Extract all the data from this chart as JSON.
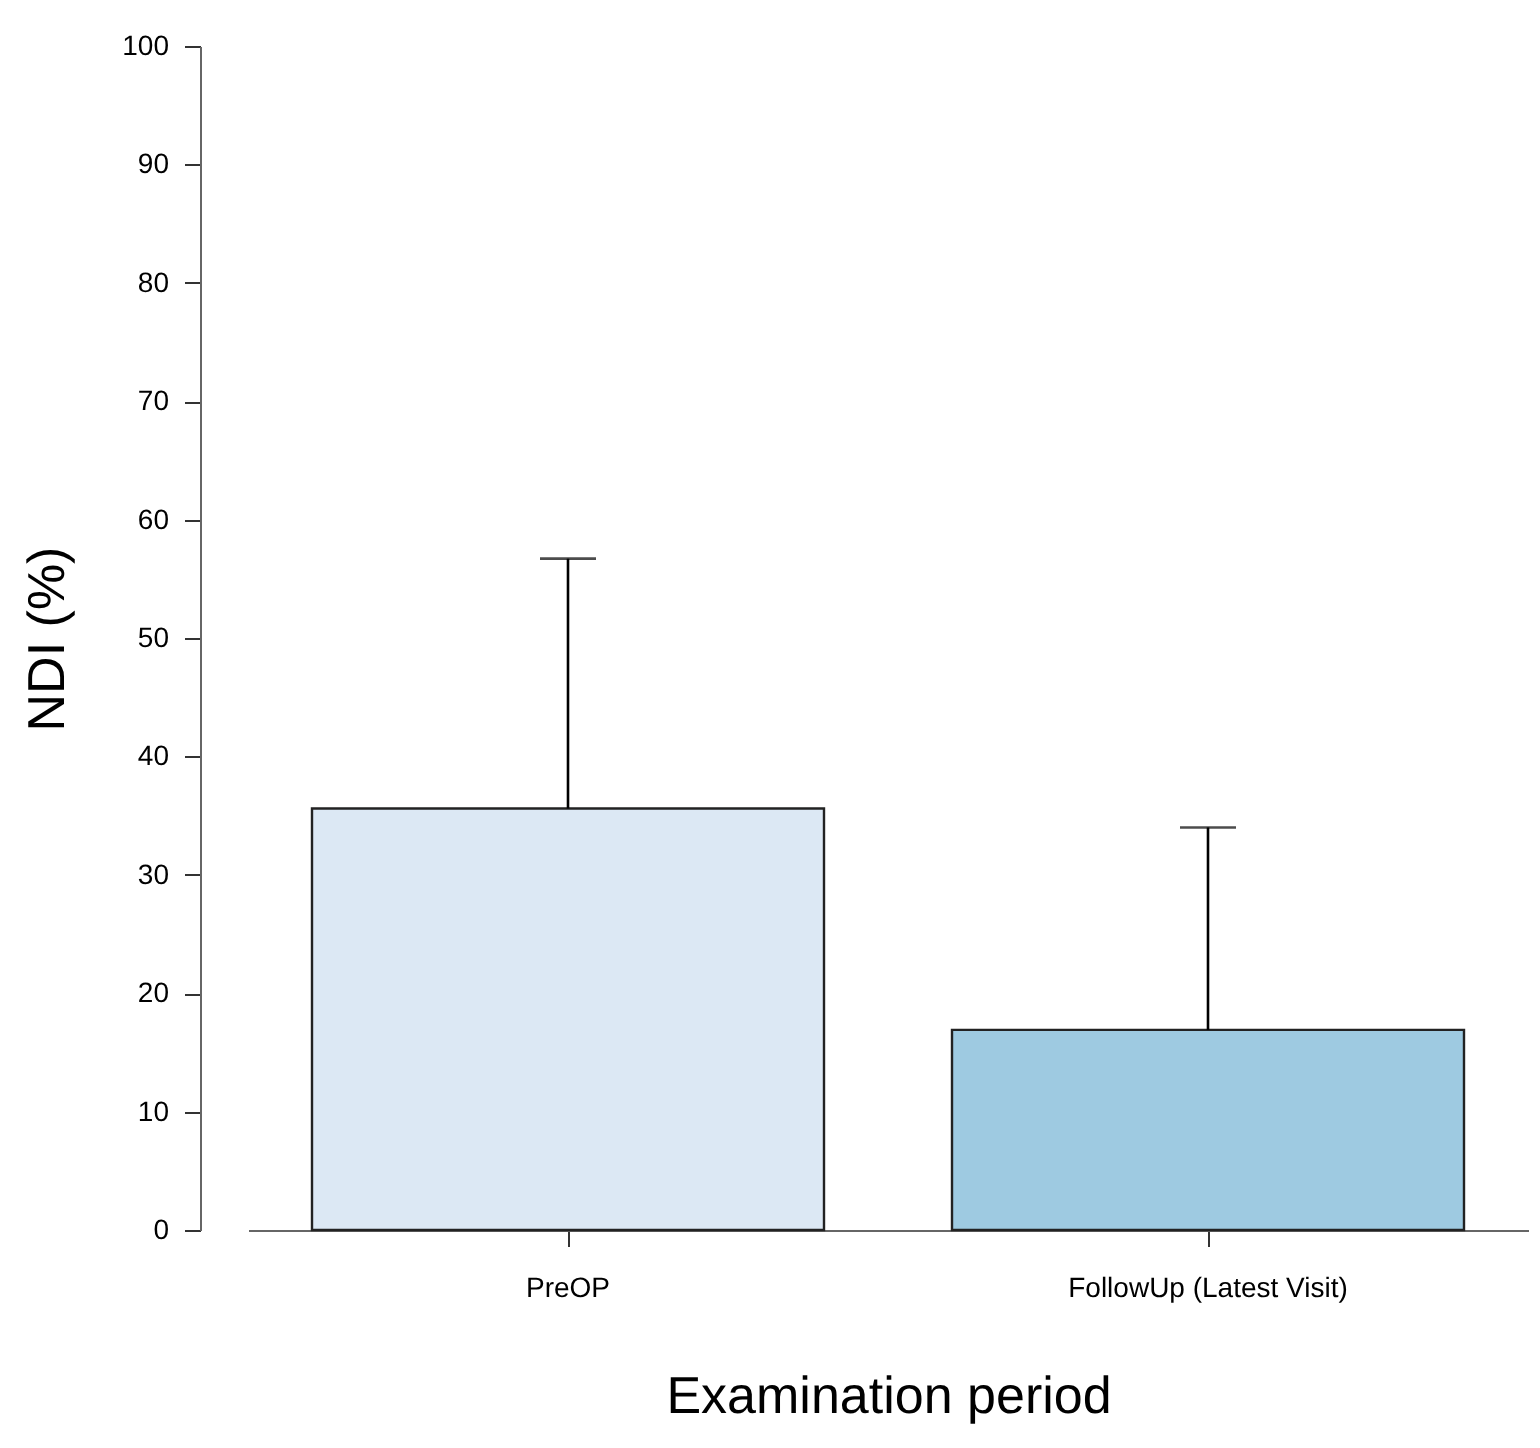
{
  "chart_data": {
    "type": "bar",
    "xlabel": "Examination period",
    "ylabel": "NDI (%)",
    "categories": [
      "PreOP",
      "FollowUp (Latest Visit)"
    ],
    "values": [
      35.6,
      16.9
    ],
    "colors": [
      "#dce8f4",
      "#9ecae1"
    ],
    "errors": [
      [
        35.6,
        56.7
      ],
      [
        16.9,
        34.0
      ]
    ],
    "ylim": [
      0,
      100
    ],
    "yticks": [
      0,
      10,
      20,
      30,
      40,
      50,
      60,
      70,
      80,
      90,
      100
    ],
    "grid": false
  }
}
